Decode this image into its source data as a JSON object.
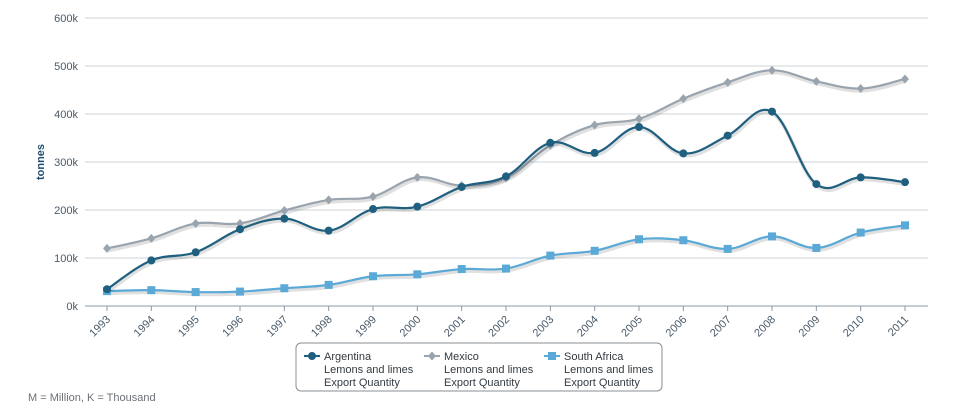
{
  "chart_data": {
    "type": "line",
    "ylabel": "tonnes",
    "xlabel": "",
    "ylim": [
      0,
      600000
    ],
    "yticks": [
      {
        "value": 0,
        "label": "0k"
      },
      {
        "value": 100000,
        "label": "100k"
      },
      {
        "value": 200000,
        "label": "200k"
      },
      {
        "value": 300000,
        "label": "300k"
      },
      {
        "value": 400000,
        "label": "400k"
      },
      {
        "value": 500000,
        "label": "500k"
      },
      {
        "value": 600000,
        "label": "600k"
      }
    ],
    "categories": [
      "1993",
      "1994",
      "1995",
      "1996",
      "1997",
      "1998",
      "1999",
      "2000",
      "2001",
      "2002",
      "2003",
      "2004",
      "2005",
      "2006",
      "2007",
      "2008",
      "2009",
      "2010",
      "2011"
    ],
    "grid": true,
    "legend_position": "bottom-center",
    "series": [
      {
        "name": "Argentina",
        "line1": "Argentina",
        "line2": "Lemons and limes",
        "line3": "Export Quantity",
        "color": "#1f5f7f",
        "marker": "circle",
        "values": [
          35000,
          95000,
          112000,
          160000,
          182000,
          157000,
          202000,
          207000,
          248000,
          270000,
          340000,
          319000,
          373000,
          318000,
          355000,
          405000,
          254000,
          268000,
          258000
        ]
      },
      {
        "name": "Mexico",
        "line1": "Mexico",
        "line2": "Lemons and limes",
        "line3": "Export Quantity",
        "color": "#9aa4ae",
        "marker": "diamond",
        "values": [
          120000,
          141000,
          172000,
          172000,
          199000,
          221000,
          228000,
          268000,
          251000,
          267000,
          335000,
          377000,
          390000,
          432000,
          466000,
          491000,
          468000,
          453000,
          473000
        ]
      },
      {
        "name": "South Africa",
        "line1": "South Africa",
        "line2": "Lemons and limes",
        "line3": "Export Quantity",
        "color": "#5aa9d6",
        "marker": "square",
        "values": [
          31000,
          33000,
          29000,
          30000,
          37000,
          44000,
          62000,
          66000,
          77000,
          78000,
          105000,
          115000,
          139000,
          137000,
          119000,
          145000,
          121000,
          153000,
          168000
        ]
      }
    ]
  },
  "footnote": "M = Million, K = Thousand"
}
